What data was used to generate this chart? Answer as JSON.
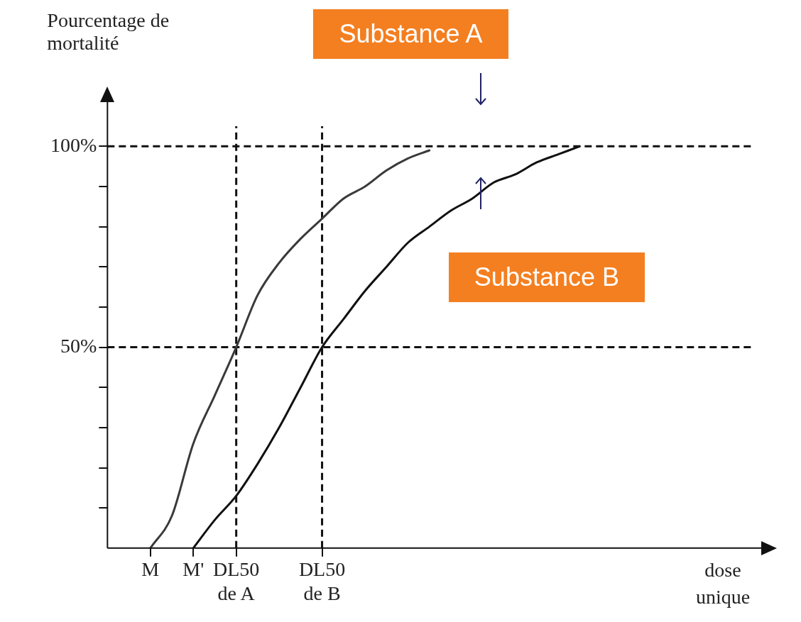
{
  "chart_data": {
    "type": "line",
    "ylabel": "Pourcentage de mortalité",
    "xlabel": "dose unique",
    "categories": [
      null,
      null,
      "M",
      null,
      "M'",
      null,
      "DL50 de A",
      null,
      null,
      null,
      "DL50 de B",
      null,
      null,
      null,
      null,
      null,
      null,
      null,
      null,
      null,
      null,
      null,
      null,
      null,
      null,
      null,
      null,
      null,
      null,
      null,
      null
    ],
    "series": [
      {
        "color": "#3a3a3a",
        "values": [
          null,
          null,
          0,
          8,
          26,
          38,
          50,
          63,
          71,
          77,
          82,
          87,
          90,
          94,
          97,
          99,
          null,
          null,
          null,
          null,
          null,
          null,
          null,
          null,
          null,
          null,
          null,
          null,
          null,
          null,
          null
        ]
      },
      {
        "color": "#111111",
        "values": [
          null,
          null,
          null,
          null,
          0,
          7,
          13,
          21,
          30,
          40,
          50,
          57,
          64,
          70,
          76,
          80,
          84,
          87,
          91,
          93,
          96,
          98,
          100,
          null,
          null,
          null,
          null,
          null,
          null,
          null,
          null
        ]
      }
    ],
    "ylim": [
      0,
      105
    ],
    "yticks": [
      {
        "value": 10,
        "label": null
      },
      {
        "value": 20,
        "label": null
      },
      {
        "value": 30,
        "label": null
      },
      {
        "value": 40,
        "label": null
      },
      {
        "value": 50,
        "label": "50%"
      },
      {
        "value": 60,
        "label": null
      },
      {
        "value": 70,
        "label": null
      },
      {
        "value": 80,
        "label": null
      },
      {
        "value": 90,
        "label": null
      },
      {
        "value": 100,
        "label": "100%"
      }
    ],
    "ref_lines": [
      {
        "axis": "y",
        "value": 100,
        "line_style": "dashed",
        "color": "#111111"
      },
      {
        "axis": "y",
        "value": 50,
        "line_style": "dashed",
        "color": "#111111"
      },
      {
        "axis": "x",
        "value": "DL50 de A",
        "line_style": "dashed",
        "color": "#111111"
      },
      {
        "axis": "x",
        "value": "DL50 de B",
        "line_style": "dashed",
        "color": "#111111"
      }
    ],
    "annotations": [
      "Substance A",
      "Substance B"
    ],
    "marker": "none",
    "line_style": "solid",
    "grid": false,
    "legend": false
  }
}
